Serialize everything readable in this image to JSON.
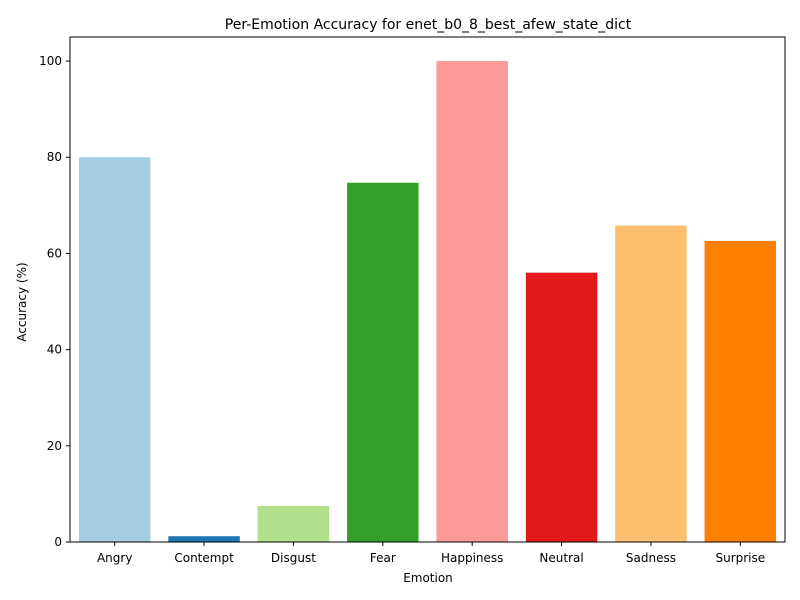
{
  "chart_data": {
    "type": "bar",
    "title": "Per-Emotion Accuracy for enet_b0_8_best_afew_state_dict",
    "xlabel": "Emotion",
    "ylabel": "Accuracy (%)",
    "categories": [
      "Angry",
      "Contempt",
      "Disgust",
      "Fear",
      "Happiness",
      "Neutral",
      "Sadness",
      "Surprise"
    ],
    "values": [
      80.0,
      1.2,
      7.5,
      74.7,
      100.0,
      56.0,
      65.8,
      62.6
    ],
    "colors": [
      "#a6cee3",
      "#1f78b4",
      "#b2df8a",
      "#33a02c",
      "#fb9a99",
      "#e31a1c",
      "#fdbf6f",
      "#ff7f00"
    ],
    "ylim": [
      0,
      105
    ],
    "yticks": [
      0,
      20,
      40,
      60,
      80,
      100
    ],
    "grid": false,
    "legend": false
  }
}
